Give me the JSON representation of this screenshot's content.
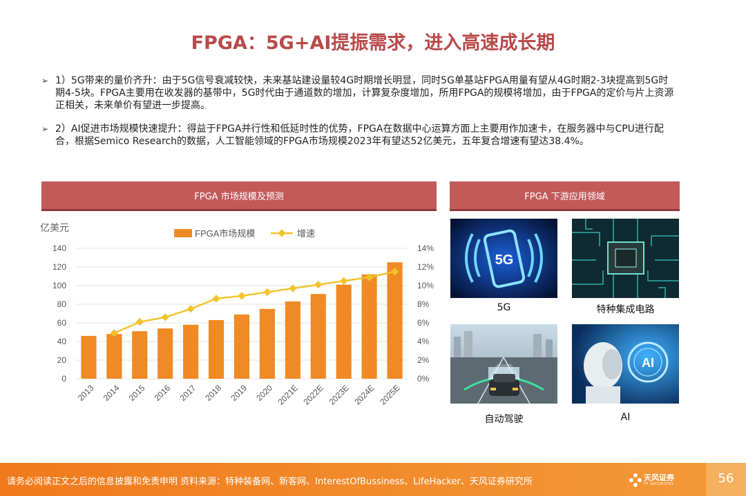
{
  "title": "FPGA：5G+AI提振需求，进入高速成长期",
  "bullets": [
    {
      "marker": "➢",
      "text": "1）5G带来的量价齐升：由于5G信号衰减较快，未来基站建设量较4G时期增长明显，同时5G单基站FPGA用量有望从4G时期2-3块提高到5G时期4-5块。FPGA主要用在收发器的基带中，5G时代由于通道数的增加，计算复杂度增加，所用FPGA的规模将增加，由于FPGA的定价与片上资源正相关，未来单价有望进一步提高。"
    },
    {
      "marker": "➢",
      "text": "2）AI促进市场规模快速提升：得益于FPGA并行性和低延时性的优势，FPGA在数据中心运算方面上主要用作加速卡，在服务器中与CPU进行配合，根据Semico Research的数据，人工智能领域的FPGA市场规模2023年有望达52亿美元，五年复合增速有望达38.4%。"
    }
  ],
  "left_panel_title": "FPGA 市场规模及预测",
  "right_panel_title": "FPGA 下游应用领域",
  "chart_data": {
    "type": "bar",
    "ylabel": "亿美元",
    "categories": [
      "2013",
      "2014",
      "2015",
      "2016",
      "2017",
      "2018",
      "2019",
      "2020",
      "2021E",
      "2022E",
      "2023E",
      "2024E",
      "2025E"
    ],
    "series": [
      {
        "name": "FPGA市场规模",
        "type": "bar",
        "axis": "left",
        "color": "#f08a24",
        "values": [
          46,
          48,
          51,
          54,
          58,
          63,
          69,
          75,
          83,
          91,
          101,
          112,
          125
        ]
      },
      {
        "name": "增速",
        "type": "line",
        "axis": "right",
        "color": "#f2c32c",
        "values": [
          null,
          4.9,
          6.1,
          6.6,
          7.5,
          8.6,
          8.9,
          9.3,
          9.7,
          10.1,
          10.5,
          10.9,
          11.5
        ]
      }
    ],
    "ylim": [
      0,
      140
    ],
    "yticks": [
      0,
      20,
      40,
      60,
      80,
      100,
      120,
      140
    ],
    "y2lim": [
      0,
      14
    ],
    "y2ticks": [
      "0%",
      "2%",
      "4%",
      "6%",
      "8%",
      "10%",
      "12%",
      "14%"
    ],
    "legend": "top-center",
    "grid": true
  },
  "tiles": [
    {
      "label": "5G",
      "icon_text": "5G",
      "icon": "phone-5g-icon"
    },
    {
      "label": "特种集成电路",
      "icon": "chip-icon"
    },
    {
      "label": "自动驾驶",
      "icon": "car-icon"
    },
    {
      "label": "AI",
      "icon_text": "AI",
      "icon": "robot-ai-icon"
    }
  ],
  "footer": {
    "text": "请务必阅读正文之后的信息披露和免责申明  资料来源：特种装备网、新客网、InterestOfBussiness、LifeHacker、天风证券研究所",
    "logo_main": "天风证券",
    "logo_sub": "TF SECURITIES",
    "page": "56"
  },
  "colors": {
    "title": "#b94a4a",
    "header_bar": "#c25a5a",
    "footer": "#f07a1c",
    "bar": "#f08a24",
    "line": "#f2c32c"
  }
}
